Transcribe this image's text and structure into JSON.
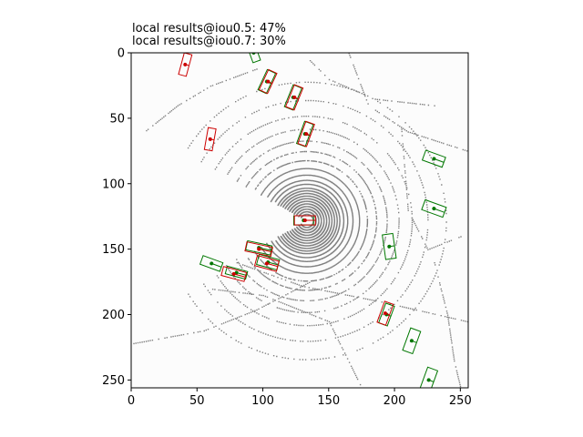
{
  "chart_data": {
    "type": "scatter",
    "title_lines": [
      "local results@iou0.5: 47%",
      "local results@iou0.7: 30%"
    ],
    "xlabel": "",
    "ylabel": "",
    "xlim": [
      0,
      256
    ],
    "ylim": [
      256,
      0
    ],
    "y_inverted": true,
    "xticks": [
      0,
      50,
      100,
      150,
      200,
      250
    ],
    "yticks": [
      0,
      50,
      100,
      150,
      200,
      250
    ],
    "grid": false,
    "colors": {
      "predicted": "#cc0000",
      "ground_truth": "#007700",
      "points": "#808080",
      "background": "#fcfcfc"
    },
    "boxes_predicted": [
      {
        "x": 41,
        "y": 9,
        "w": 6,
        "h": 17,
        "angle": 15
      },
      {
        "x": 104,
        "y": 22,
        "w": 7,
        "h": 17,
        "angle": 25
      },
      {
        "x": 124,
        "y": 34,
        "w": 7,
        "h": 18,
        "angle": 22
      },
      {
        "x": 133,
        "y": 62,
        "w": 7,
        "h": 18,
        "angle": 20
      },
      {
        "x": 60,
        "y": 66,
        "w": 6,
        "h": 17,
        "angle": 10
      },
      {
        "x": 132,
        "y": 128,
        "w": 16,
        "h": 7,
        "angle": 0
      },
      {
        "x": 97,
        "y": 150,
        "w": 20,
        "h": 7,
        "angle": 12
      },
      {
        "x": 103,
        "y": 161,
        "w": 17,
        "h": 8,
        "angle": 15
      },
      {
        "x": 78,
        "y": 169,
        "w": 18,
        "h": 7,
        "angle": 15
      },
      {
        "x": 193,
        "y": 199,
        "w": 7,
        "h": 17,
        "angle": 20
      }
    ],
    "boxes_ground_truth": [
      {
        "x": 93,
        "y": 0,
        "w": 6,
        "h": 14,
        "angle": -20
      },
      {
        "x": 103,
        "y": 22,
        "w": 7,
        "h": 17,
        "angle": 25
      },
      {
        "x": 123,
        "y": 34,
        "w": 7,
        "h": 18,
        "angle": 22
      },
      {
        "x": 132,
        "y": 62,
        "w": 7,
        "h": 18,
        "angle": 20
      },
      {
        "x": 230,
        "y": 81,
        "w": 16,
        "h": 8,
        "angle": 20
      },
      {
        "x": 230,
        "y": 119,
        "w": 17,
        "h": 8,
        "angle": 20
      },
      {
        "x": 131,
        "y": 128,
        "w": 15,
        "h": 7,
        "angle": 0
      },
      {
        "x": 196,
        "y": 148,
        "w": 8,
        "h": 19,
        "angle": -8
      },
      {
        "x": 97,
        "y": 149,
        "w": 19,
        "h": 7,
        "angle": 12
      },
      {
        "x": 104,
        "y": 160,
        "w": 16,
        "h": 8,
        "angle": 15
      },
      {
        "x": 61,
        "y": 161,
        "w": 16,
        "h": 7,
        "angle": 20
      },
      {
        "x": 80,
        "y": 168,
        "w": 16,
        "h": 6,
        "angle": 15
      },
      {
        "x": 194,
        "y": 200,
        "w": 7,
        "h": 16,
        "angle": 20
      },
      {
        "x": 213,
        "y": 220,
        "w": 8,
        "h": 18,
        "angle": 20
      },
      {
        "x": 226,
        "y": 250,
        "w": 8,
        "h": 18,
        "angle": 20
      }
    ]
  }
}
